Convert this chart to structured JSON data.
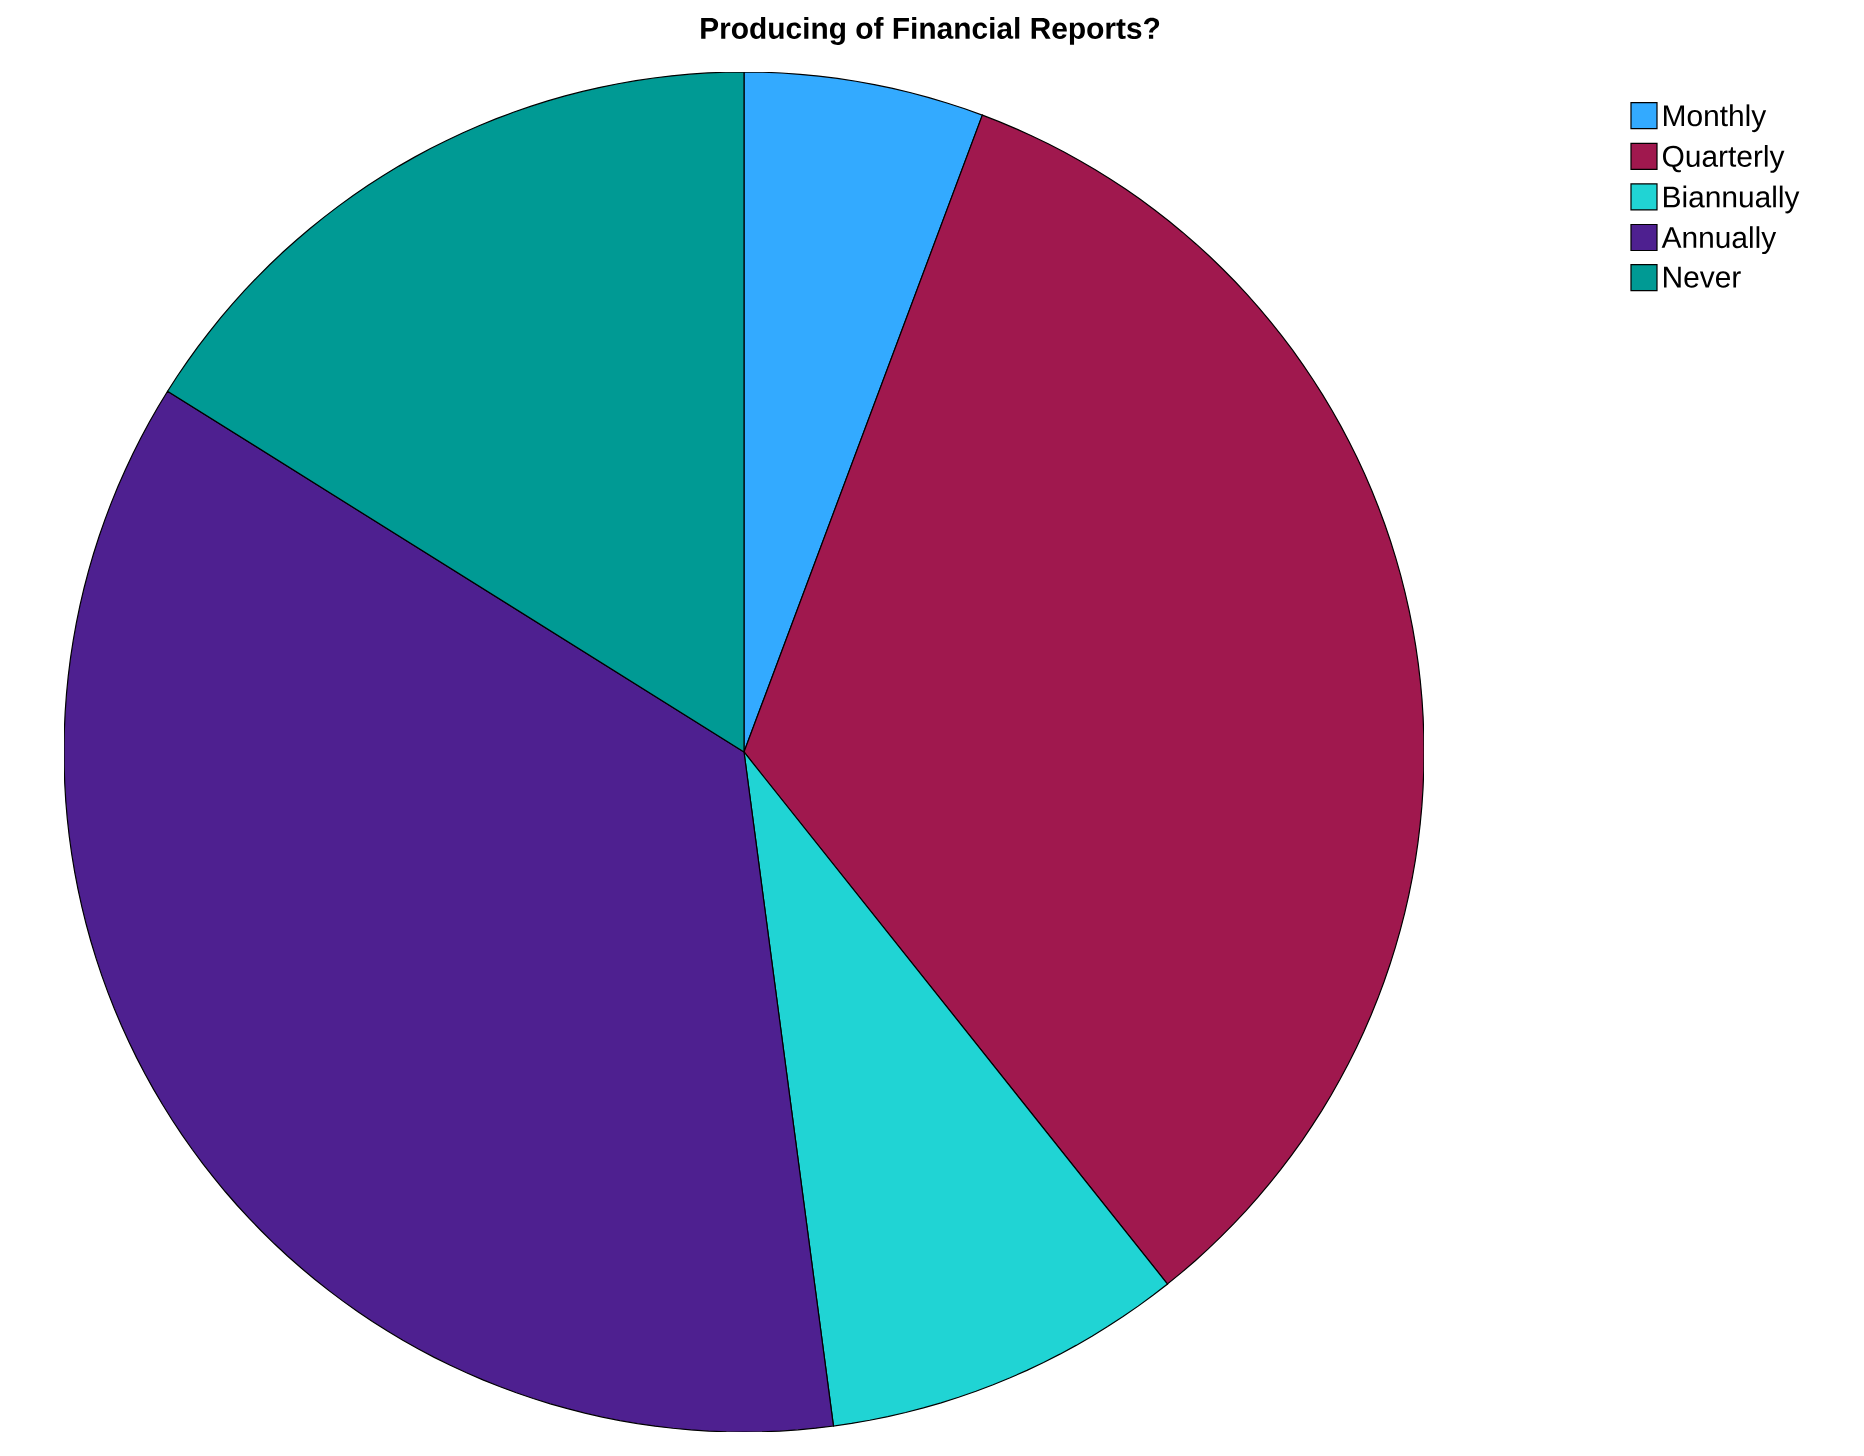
{
  "chart_data": {
    "type": "pie",
    "title": "Producing of Financial Reports?",
    "categories": [
      "Monthly",
      "Quarterly",
      "Biannually",
      "Annually",
      "Never"
    ],
    "values": [
      5.7,
      33.6,
      8.6,
      36.0,
      16.1
    ],
    "colors": [
      "#33aaff",
      "#a0184e",
      "#20d4d4",
      "#4e2090",
      "#009a94"
    ],
    "legend": "top right"
  }
}
